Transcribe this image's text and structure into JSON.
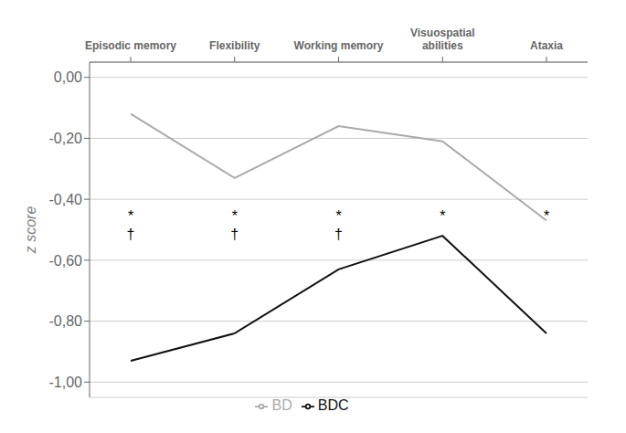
{
  "chart_data": {
    "type": "line",
    "categories": [
      "Episodic memory",
      "Flexibility",
      "Working memory",
      "Visuospatial\nabilities",
      "Ataxia"
    ],
    "series": [
      {
        "name": "BD",
        "color": "#aaaaaa",
        "values": [
          -0.12,
          -0.33,
          -0.16,
          -0.21,
          -0.47
        ]
      },
      {
        "name": "BDC",
        "color": "#111111",
        "values": [
          -0.93,
          -0.84,
          -0.63,
          -0.52,
          -0.84
        ]
      }
    ],
    "ylabel": "z score",
    "ylim": [
      -1.05,
      0.05
    ],
    "yticks": [
      {
        "value": 0.0,
        "label": "0,00"
      },
      {
        "value": -0.2,
        "label": "-0,20"
      },
      {
        "value": -0.4,
        "label": "-0,40"
      },
      {
        "value": -0.6,
        "label": "-0,60"
      },
      {
        "value": -0.8,
        "label": "-0,80"
      },
      {
        "value": -1.0,
        "label": "-1,00"
      }
    ],
    "grid": true,
    "legend": "bottom",
    "annotations": [
      {
        "text": "*",
        "x": "Episodic memory",
        "y": -0.455
      },
      {
        "text": "*",
        "x": "Flexibility",
        "y": -0.455
      },
      {
        "text": "*",
        "x": "Working memory",
        "y": -0.455
      },
      {
        "text": "*",
        "x": "Visuospatial\nabilities",
        "y": -0.455
      },
      {
        "text": "*",
        "x": "Ataxia",
        "y": -0.455
      },
      {
        "text": "†",
        "x": "Episodic memory",
        "y": -0.515
      },
      {
        "text": "†",
        "x": "Flexibility",
        "y": -0.515
      },
      {
        "text": "†",
        "x": "Working memory",
        "y": -0.515
      }
    ]
  }
}
